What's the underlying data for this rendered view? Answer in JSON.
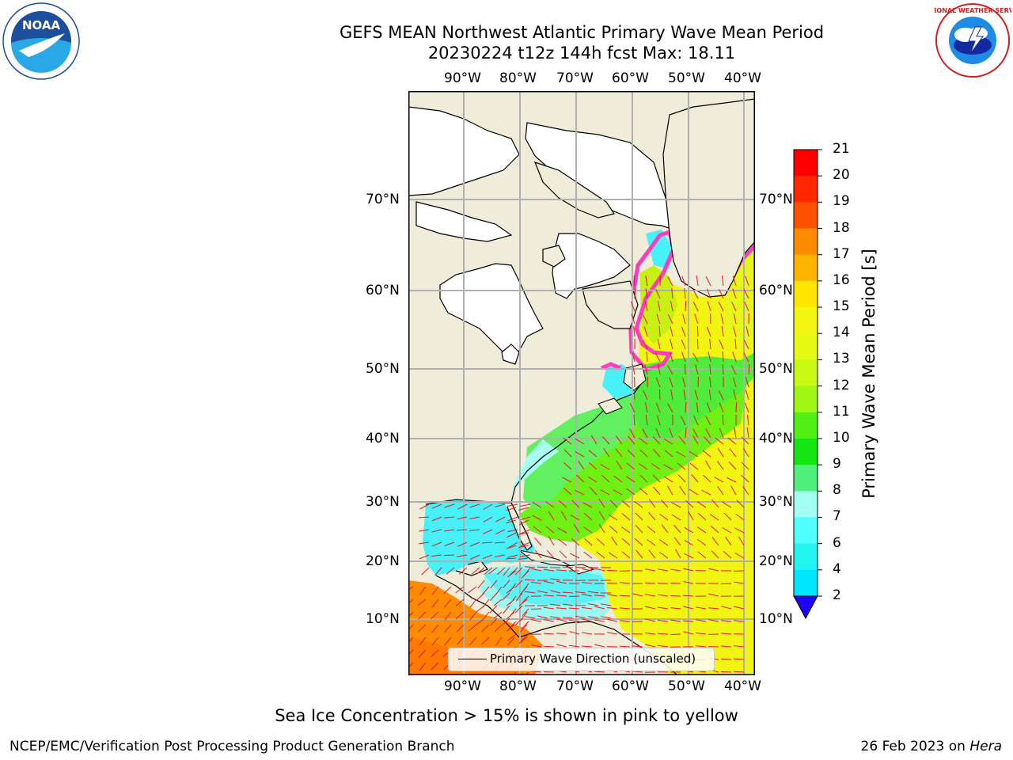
{
  "header": {
    "title_line1": "GEFS MEAN Northwest Atlantic Primary Wave Mean Period",
    "title_line2": "20230224 t12z 144h fcst   Max: 18.11"
  },
  "logos": {
    "left": {
      "name": "noaa-logo",
      "text": "NOAA"
    },
    "right": {
      "name": "nws-logo",
      "text": "NATIONAL WEATHER SERVICE"
    }
  },
  "map": {
    "lon_labels": [
      "90°W",
      "80°W",
      "70°W",
      "60°W",
      "50°W",
      "40°W"
    ],
    "lat_labels": [
      "70°N",
      "60°N",
      "50°N",
      "40°N",
      "30°N",
      "20°N",
      "10°N"
    ],
    "legend_label": "Primary Wave Direction (unscaled)",
    "colors": {
      "land": "#efedda",
      "ice_land": "#ffffff",
      "grid": "#b0b0b0",
      "vector": "#e8141e"
    }
  },
  "colorbar": {
    "label": "Primary Wave Mean Period [s]",
    "ticks": [
      "2",
      "4",
      "6",
      "7",
      "8",
      "9",
      "10",
      "11",
      "12",
      "13",
      "14",
      "15",
      "16",
      "17",
      "18",
      "19",
      "20",
      "21"
    ],
    "colors": [
      "#0a6ef5",
      "#00e6ff",
      "#22f5f0",
      "#50ffff",
      "#a0fff0",
      "#50f07a",
      "#14e614",
      "#50f014",
      "#a0f514",
      "#c8fa14",
      "#e6fa14",
      "#f5f514",
      "#ffe600",
      "#ffb400",
      "#ff8c00",
      "#ff5000",
      "#ff2800",
      "#ff0000"
    ],
    "under_color": "#1e00ff"
  },
  "footer": {
    "note": "Sea Ice Concentration > 15% is shown in pink to yellow",
    "credit": "NCEP/EMC/Verification Post Processing Product Generation Branch",
    "date": "26 Feb 2023 on",
    "host": "Hera"
  }
}
